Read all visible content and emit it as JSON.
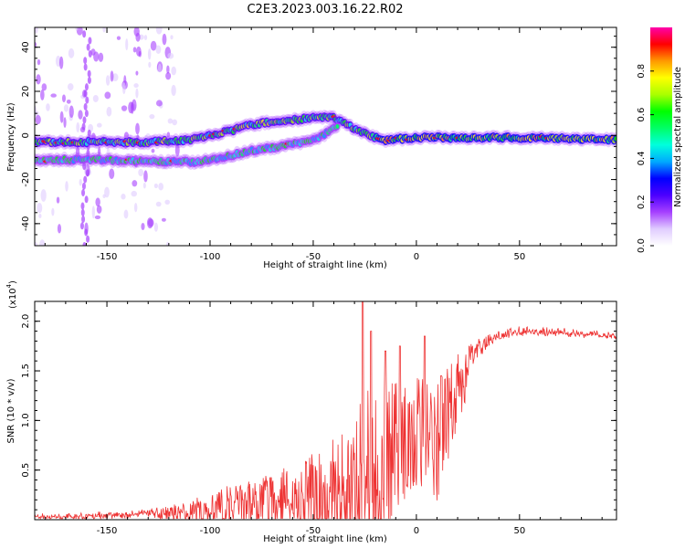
{
  "page_title": "C2E3.2023.003.16.22.R02",
  "colors": {
    "snr_line": "#ee3333",
    "axis": "#000000",
    "background": "#ffffff"
  },
  "chart_data": [
    {
      "type": "heatmap",
      "name": "spectrogram",
      "xlabel": "Height of straight line (km)",
      "ylabel": "Frequency (Hz)",
      "xlim": [
        -185,
        97
      ],
      "ylim": [
        -50,
        49
      ],
      "xticks": [
        -150,
        -100,
        -50,
        0,
        50
      ],
      "xtick_labels": [
        "-150",
        "-100",
        "-50",
        "0",
        "50"
      ],
      "yticks": [
        -40,
        -20,
        0,
        20,
        40
      ],
      "ytick_labels": [
        "-40",
        "-20",
        "0",
        "20",
        "40"
      ],
      "tracks": [
        {
          "name": "main-carrier",
          "points": [
            [
              -185,
              -3
            ],
            [
              -150,
              -3
            ],
            [
              -130,
              -3
            ],
            [
              -110,
              -2
            ],
            [
              -100,
              0
            ],
            [
              -90,
              2
            ],
            [
              -80,
              5
            ],
            [
              -70,
              6
            ],
            [
              -60,
              7
            ],
            [
              -50,
              8
            ],
            [
              -40,
              8
            ],
            [
              -35,
              6
            ],
            [
              -30,
              3
            ],
            [
              -25,
              1
            ],
            [
              -20,
              -1
            ],
            [
              -15,
              -2
            ],
            [
              0,
              -1
            ],
            [
              20,
              -1
            ],
            [
              50,
              -1
            ],
            [
              97,
              -2
            ]
          ]
        },
        {
          "name": "lower-sideband",
          "points": [
            [
              -185,
              -11
            ],
            [
              -150,
              -11
            ],
            [
              -130,
              -12
            ],
            [
              -120,
              -12
            ],
            [
              -105,
              -12
            ],
            [
              -95,
              -10
            ],
            [
              -85,
              -8
            ],
            [
              -75,
              -6
            ],
            [
              -65,
              -5
            ],
            [
              -55,
              -3
            ],
            [
              -45,
              0
            ],
            [
              -38,
              5
            ]
          ]
        }
      ],
      "colorbar": {
        "label": "Normalized spectral amplitude",
        "range": [
          0,
          1
        ],
        "ticks": [
          0.0,
          0.2,
          0.4,
          0.6,
          0.8
        ],
        "tick_labels": [
          "0.0",
          "0.2",
          "0.4",
          "0.6",
          "0.8"
        ],
        "colormap": [
          "#ffffff",
          "#e0ccff",
          "#a640ff",
          "#4c00ff",
          "#0000ff",
          "#00aaff",
          "#00ffdd",
          "#00ff66",
          "#00ff00",
          "#aaff00",
          "#ffff00",
          "#ff9900",
          "#ff0000",
          "#ff00aa"
        ]
      }
    },
    {
      "type": "line",
      "name": "snr",
      "xlabel": "Height of straight line (km)",
      "ylabel": "SNR (10 * v/v)",
      "y_multiplier": "(x10",
      "y_multiplier_exp": "4",
      "y_multiplier_close": ")",
      "xlim": [
        -185,
        97
      ],
      "ylim": [
        0,
        2.2
      ],
      "xticks": [
        -150,
        -100,
        -50,
        0,
        50
      ],
      "xtick_labels": [
        "-150",
        "-100",
        "-50",
        "0",
        "50"
      ],
      "yticks": [
        0.5,
        1.0,
        1.5,
        2.0
      ],
      "ytick_labels": [
        "0.5",
        "1.0",
        "1.5",
        "2.0"
      ],
      "series": [
        {
          "name": "SNR",
          "envelope": [
            [
              -185,
              0.05
            ],
            [
              -160,
              0.06
            ],
            [
              -140,
              0.08
            ],
            [
              -120,
              0.12
            ],
            [
              -110,
              0.18
            ],
            [
              -100,
              0.25
            ],
            [
              -90,
              0.35
            ],
            [
              -80,
              0.4
            ],
            [
              -70,
              0.45
            ],
            [
              -60,
              0.55
            ],
            [
              -50,
              0.65
            ],
            [
              -40,
              0.8
            ],
            [
              -30,
              1.1
            ],
            [
              -25,
              1.35
            ],
            [
              -20,
              1.3
            ],
            [
              -15,
              1.35
            ],
            [
              -10,
              1.45
            ],
            [
              -5,
              1.4
            ],
            [
              0,
              1.45
            ],
            [
              5,
              1.45
            ],
            [
              10,
              1.5
            ],
            [
              15,
              1.55
            ],
            [
              20,
              1.65
            ],
            [
              25,
              1.75
            ],
            [
              30,
              1.85
            ],
            [
              40,
              1.9
            ],
            [
              50,
              1.93
            ],
            [
              60,
              1.93
            ],
            [
              70,
              1.92
            ],
            [
              80,
              1.9
            ],
            [
              90,
              1.89
            ],
            [
              97,
              1.87
            ]
          ],
          "noise": [
            [
              -185,
              0.03
            ],
            [
              -130,
              0.03
            ],
            [
              -115,
              0.1
            ],
            [
              -95,
              0.15
            ],
            [
              -80,
              0.2
            ],
            [
              -60,
              0.3
            ],
            [
              -40,
              0.5
            ],
            [
              -30,
              0.7
            ],
            [
              -20,
              0.75
            ],
            [
              -10,
              0.55
            ],
            [
              0,
              0.45
            ],
            [
              10,
              0.55
            ],
            [
              20,
              0.3
            ],
            [
              30,
              0.08
            ],
            [
              40,
              0.03
            ],
            [
              97,
              0.02
            ]
          ],
          "peaks": [
            [
              -26,
              2.2
            ],
            [
              -22,
              1.9
            ],
            [
              -8,
              1.75
            ],
            [
              -15,
              1.7
            ],
            [
              4,
              1.85
            ],
            [
              12,
              1.45
            ]
          ]
        }
      ]
    }
  ]
}
